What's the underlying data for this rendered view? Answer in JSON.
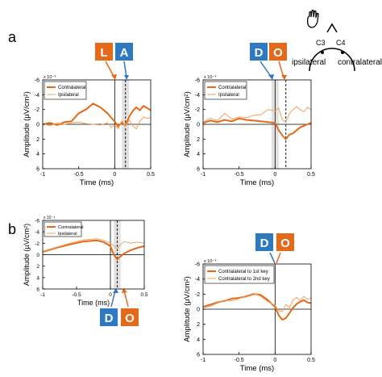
{
  "figure": {
    "panel_a": "a",
    "panel_b": "b",
    "head_diagram": {
      "left_electrode": "C3",
      "right_electrode": "C4",
      "left_label": "ipsilateral",
      "right_label": "contralateral"
    }
  },
  "colors": {
    "contralateral": "#e46a1a",
    "ipsilateral": "#f2a25e",
    "blue_box": "#2f78c2",
    "orange_box": "#e46a1a",
    "window": "#d9d9d9"
  },
  "letter_boxes": [
    {
      "text": "L",
      "color": "orange"
    },
    {
      "text": "A",
      "color": "blue"
    },
    {
      "text": "D",
      "color": "blue"
    },
    {
      "text": "O",
      "color": "orange"
    },
    {
      "text": "D",
      "color": "blue"
    },
    {
      "text": "O",
      "color": "orange"
    },
    {
      "text": "D",
      "color": "blue"
    },
    {
      "text": "O",
      "color": "orange"
    }
  ],
  "chart_data": [
    {
      "type": "line",
      "panel": "a-left",
      "xlabel": "Time (ms)",
      "ylabel": "Amplitude (µV/cm²)",
      "exponent": "x 10⁻⁴",
      "xlim": [
        -1,
        0.5
      ],
      "ylim": [
        6,
        -6
      ],
      "xticks": [
        "-1",
        "-0.5",
        "0",
        "0.5"
      ],
      "yticks": [
        "-6",
        "-4",
        "-2",
        "0",
        "2",
        "4",
        "6"
      ],
      "legend": [
        "Contralateral",
        "Ipsilateral"
      ],
      "x": [
        -1.0,
        -0.9,
        -0.8,
        -0.7,
        -0.6,
        -0.5,
        -0.4,
        -0.3,
        -0.2,
        -0.1,
        -0.05,
        0.0,
        0.05,
        0.1,
        0.15,
        0.2,
        0.25,
        0.3,
        0.35,
        0.4,
        0.45,
        0.5
      ],
      "series": [
        {
          "name": "Contralateral",
          "values": [
            0.0,
            -0.2,
            0.1,
            -0.3,
            -0.4,
            -1.5,
            -2.0,
            -2.8,
            -2.3,
            -1.5,
            -0.9,
            -0.4,
            0.3,
            -0.3,
            0.2,
            -1.0,
            -1.8,
            -2.3,
            -1.9,
            -2.5,
            -2.2,
            -1.9
          ]
        },
        {
          "name": "Ipsilateral",
          "values": [
            -0.1,
            0.2,
            -0.2,
            0.0,
            -0.2,
            -0.3,
            -0.1,
            0.0,
            0.1,
            -0.2,
            0.4,
            0.1,
            0.6,
            -0.5,
            0.3,
            -0.6,
            0.2,
            0.6,
            -0.4,
            -1.0,
            -0.8,
            -0.9
          ]
        }
      ],
      "window": [
        0.1,
        0.2
      ],
      "markers": [
        0.0,
        0.15
      ]
    },
    {
      "type": "line",
      "panel": "a-right",
      "xlabel": "Time (ms)",
      "ylabel": "Amplitude (µV/cm²)",
      "exponent": "x 10⁻⁴",
      "xlim": [
        -1,
        0.5
      ],
      "ylim": [
        6,
        -6
      ],
      "xticks": [
        "-1",
        "-0.5",
        "0",
        "0.5"
      ],
      "yticks": [
        "-6",
        "-4",
        "-2",
        "0",
        "2",
        "4",
        "6"
      ],
      "legend": [
        "Contralateral",
        "Ipsilateral"
      ],
      "x": [
        -1.0,
        -0.9,
        -0.8,
        -0.7,
        -0.6,
        -0.5,
        -0.4,
        -0.3,
        -0.2,
        -0.1,
        0.0,
        0.05,
        0.1,
        0.15,
        0.2,
        0.25,
        0.3,
        0.35,
        0.4,
        0.45,
        0.5
      ],
      "series": [
        {
          "name": "Contralateral",
          "values": [
            -0.2,
            -0.5,
            -0.3,
            -0.6,
            -0.4,
            -0.8,
            -0.6,
            -0.5,
            -0.4,
            -0.3,
            -0.2,
            0.8,
            1.5,
            2.0,
            1.4,
            1.2,
            0.8,
            0.4,
            0.2,
            0.0,
            -0.2
          ]
        },
        {
          "name": "Ipsilateral",
          "values": [
            -0.3,
            -0.8,
            -0.5,
            -1.5,
            -0.7,
            -1.0,
            -0.9,
            -1.2,
            -1.3,
            -2.0,
            -1.8,
            -2.2,
            -0.6,
            -0.3,
            -1.5,
            -2.0,
            -2.4,
            -2.0,
            -1.7,
            -2.3,
            -2.0
          ]
        }
      ],
      "window": [
        -0.05,
        0.05
      ],
      "markers": [
        0.0,
        0.15
      ]
    },
    {
      "type": "line",
      "panel": "b-left",
      "xlabel": "Time (ms)",
      "ylabel": "Amplitude (µV/cm²)",
      "exponent": "x 10⁻⁴",
      "xlim": [
        -1,
        0.5
      ],
      "ylim": [
        6,
        -6
      ],
      "xticks": [
        "-1",
        "-0.5",
        "0",
        "0.5"
      ],
      "yticks": [
        "-6",
        "-4",
        "-2",
        "0",
        "2",
        "4",
        "6"
      ],
      "legend": [
        "Contralateral",
        "Ipsilateral"
      ],
      "x": [
        -1.0,
        -0.8,
        -0.6,
        -0.4,
        -0.2,
        -0.1,
        0.0,
        0.05,
        0.1,
        0.15,
        0.2,
        0.3,
        0.4,
        0.5
      ],
      "series": [
        {
          "name": "Contralateral",
          "values": [
            -0.5,
            -1.2,
            -1.8,
            -2.3,
            -2.5,
            -2.2,
            -1.5,
            0.0,
            0.8,
            0.3,
            -0.2,
            -0.8,
            -1.2,
            -1.5
          ]
        },
        {
          "name": "Ipsilateral",
          "values": [
            -0.6,
            -1.3,
            -2.0,
            -2.6,
            -2.8,
            -2.5,
            -2.0,
            -1.6,
            -1.0,
            -1.8,
            -2.3,
            -2.0,
            -2.2,
            -2.0
          ]
        }
      ],
      "window": [
        0.05,
        0.15
      ],
      "markers": [
        0.0,
        0.1
      ]
    },
    {
      "type": "line",
      "panel": "b-right",
      "xlabel": "Time (ms)",
      "ylabel": "Amplitude (µV/cm²)",
      "exponent": "x 10⁻⁴",
      "xlim": [
        -1,
        0.5
      ],
      "ylim": [
        6,
        -6
      ],
      "xticks": [
        "-1",
        "-0.5",
        "0",
        "0.5"
      ],
      "yticks": [
        "-6",
        "-4",
        "-2",
        "0",
        "2",
        "4",
        "6"
      ],
      "legend": [
        "Contralateral to 1st key",
        "Contralateral to 2nd key"
      ],
      "x": [
        -1.0,
        -0.9,
        -0.8,
        -0.7,
        -0.6,
        -0.5,
        -0.4,
        -0.3,
        -0.2,
        -0.1,
        0.0,
        0.05,
        0.1,
        0.15,
        0.2,
        0.25,
        0.3,
        0.35,
        0.4,
        0.45,
        0.5
      ],
      "series": [
        {
          "name": "Contralateral to 1st key",
          "values": [
            -0.3,
            -0.6,
            -0.9,
            -1.1,
            -1.4,
            -1.5,
            -1.7,
            -2.0,
            -1.9,
            -1.2,
            -0.3,
            0.8,
            1.4,
            1.2,
            0.5,
            -0.2,
            -0.7,
            -1.0,
            -1.2,
            -0.9,
            -0.8
          ]
        },
        {
          "name": "Contralateral to 2nd key",
          "values": [
            -0.2,
            -0.4,
            -0.8,
            -1.2,
            -1.1,
            -1.4,
            -1.8,
            -2.1,
            -1.7,
            -1.0,
            -0.5,
            0.2,
            0.3,
            -0.6,
            -0.2,
            -1.2,
            -1.6,
            -1.1,
            -1.7,
            -1.3,
            -1.5
          ]
        }
      ],
      "window": null,
      "markers": [
        0.0
      ]
    }
  ]
}
